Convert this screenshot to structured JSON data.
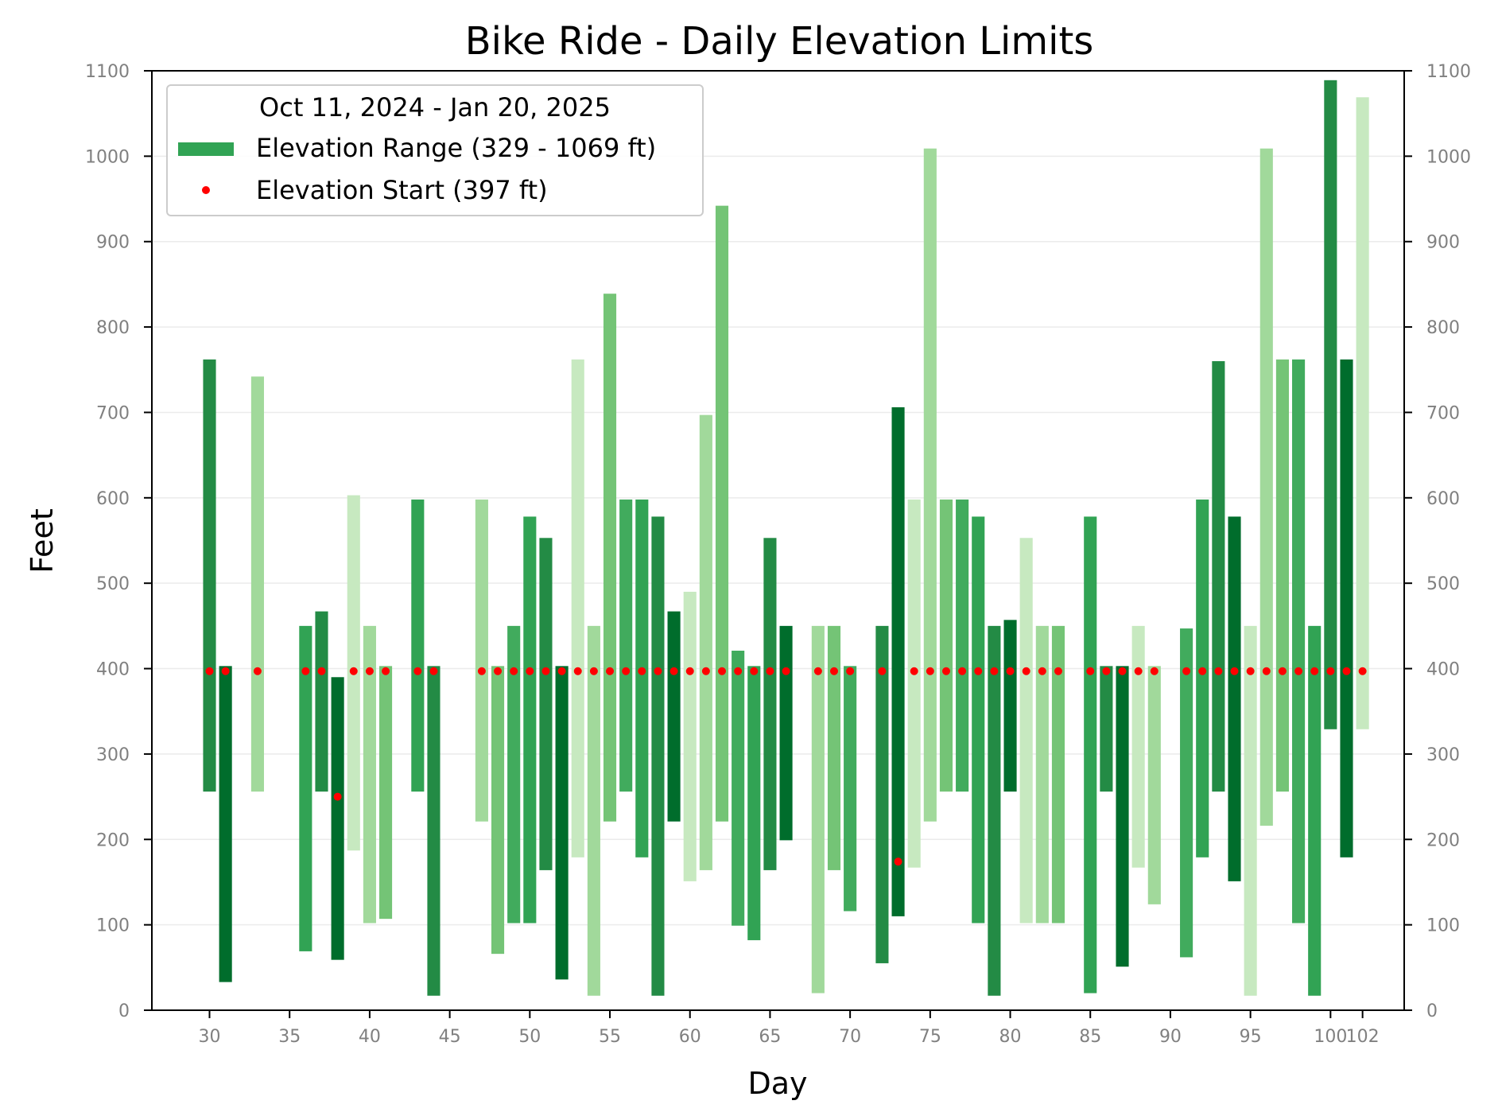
{
  "chart_data": {
    "type": "bar",
    "title": "Bike Ride - Daily Elevation Limits",
    "xlabel": "Day",
    "ylabel": "Feet",
    "ylim": [
      0,
      1100
    ],
    "xlim": [
      26.4,
      104.6
    ],
    "yticks": [
      0,
      100,
      200,
      300,
      400,
      500,
      600,
      700,
      800,
      900,
      1000,
      1100
    ],
    "xticks": [
      30,
      35,
      40,
      45,
      50,
      55,
      60,
      65,
      70,
      75,
      80,
      85,
      90,
      95,
      100,
      102
    ],
    "xtick_labels": [
      "30",
      "35",
      "40",
      "45",
      "50",
      "55",
      "60",
      "65",
      "70",
      "75",
      "80",
      "85",
      "90",
      "95",
      "100",
      "102"
    ],
    "right_axis_ticks": true,
    "grid": "horizontal",
    "legend": {
      "title": "Oct 11, 2024 - Jan 20, 2025",
      "placement": "top-left",
      "entries": [
        {
          "label": "Elevation Range (329 - 1069 ft)",
          "kind": "bar",
          "color": "#31a354"
        },
        {
          "label": "Elevation Start (397 ft)",
          "kind": "dot",
          "color": "#ff0000"
        }
      ]
    },
    "series": [
      {
        "name": "Elevation Range (329 - 1069 ft)",
        "kind": "floating-bar",
        "bars": [
          {
            "x": 30,
            "low": 256,
            "high": 762,
            "color": "#238b45"
          },
          {
            "x": 31,
            "low": 33,
            "high": 403,
            "color": "#006d2c"
          },
          {
            "x": 33,
            "low": 256,
            "high": 742,
            "color": "#a1d99b"
          },
          {
            "x": 36,
            "low": 69,
            "high": 450,
            "color": "#31a354"
          },
          {
            "x": 37,
            "low": 256,
            "high": 467,
            "color": "#238b45"
          },
          {
            "x": 38,
            "low": 59,
            "high": 390,
            "color": "#006d2c"
          },
          {
            "x": 39,
            "low": 187,
            "high": 603,
            "color": "#c7e9c0"
          },
          {
            "x": 40,
            "low": 102,
            "high": 450,
            "color": "#a1d99b"
          },
          {
            "x": 41,
            "low": 107,
            "high": 403,
            "color": "#74c476"
          },
          {
            "x": 43,
            "low": 256,
            "high": 598,
            "color": "#31a354"
          },
          {
            "x": 44,
            "low": 17,
            "high": 403,
            "color": "#238b45"
          },
          {
            "x": 47,
            "low": 221,
            "high": 598,
            "color": "#a1d99b"
          },
          {
            "x": 48,
            "low": 66,
            "high": 403,
            "color": "#74c476"
          },
          {
            "x": 49,
            "low": 102,
            "high": 450,
            "color": "#41ab5d"
          },
          {
            "x": 50,
            "low": 102,
            "high": 578,
            "color": "#31a354"
          },
          {
            "x": 51,
            "low": 164,
            "high": 553,
            "color": "#238b45"
          },
          {
            "x": 52,
            "low": 36,
            "high": 403,
            "color": "#006d2c"
          },
          {
            "x": 53,
            "low": 179,
            "high": 762,
            "color": "#c7e9c0"
          },
          {
            "x": 54,
            "low": 17,
            "high": 450,
            "color": "#a1d99b"
          },
          {
            "x": 55,
            "low": 221,
            "high": 839,
            "color": "#74c476"
          },
          {
            "x": 56,
            "low": 256,
            "high": 598,
            "color": "#41ab5d"
          },
          {
            "x": 57,
            "low": 179,
            "high": 598,
            "color": "#31a354"
          },
          {
            "x": 58,
            "low": 17,
            "high": 578,
            "color": "#238b45"
          },
          {
            "x": 59,
            "low": 221,
            "high": 467,
            "color": "#006d2c"
          },
          {
            "x": 60,
            "low": 151,
            "high": 490,
            "color": "#c7e9c0"
          },
          {
            "x": 61,
            "low": 164,
            "high": 697,
            "color": "#a1d99b"
          },
          {
            "x": 62,
            "low": 221,
            "high": 942,
            "color": "#74c476"
          },
          {
            "x": 63,
            "low": 99,
            "high": 421,
            "color": "#41ab5d"
          },
          {
            "x": 64,
            "low": 82,
            "high": 403,
            "color": "#31a354"
          },
          {
            "x": 65,
            "low": 164,
            "high": 553,
            "color": "#238b45"
          },
          {
            "x": 66,
            "low": 199,
            "high": 450,
            "color": "#006d2c"
          },
          {
            "x": 68,
            "low": 20,
            "high": 450,
            "color": "#a1d99b"
          },
          {
            "x": 69,
            "low": 164,
            "high": 450,
            "color": "#74c476"
          },
          {
            "x": 70,
            "low": 116,
            "high": 403,
            "color": "#41ab5d"
          },
          {
            "x": 72,
            "low": 55,
            "high": 450,
            "color": "#238b45"
          },
          {
            "x": 73,
            "low": 110,
            "high": 706,
            "color": "#006d2c"
          },
          {
            "x": 74,
            "low": 167,
            "high": 598,
            "color": "#c7e9c0"
          },
          {
            "x": 75,
            "low": 221,
            "high": 1009,
            "color": "#a1d99b"
          },
          {
            "x": 76,
            "low": 256,
            "high": 598,
            "color": "#74c476"
          },
          {
            "x": 77,
            "low": 256,
            "high": 598,
            "color": "#41ab5d"
          },
          {
            "x": 78,
            "low": 102,
            "high": 578,
            "color": "#31a354"
          },
          {
            "x": 79,
            "low": 17,
            "high": 450,
            "color": "#238b45"
          },
          {
            "x": 80,
            "low": 256,
            "high": 457,
            "color": "#006d2c"
          },
          {
            "x": 81,
            "low": 102,
            "high": 553,
            "color": "#c7e9c0"
          },
          {
            "x": 82,
            "low": 102,
            "high": 450,
            "color": "#a1d99b"
          },
          {
            "x": 83,
            "low": 102,
            "high": 450,
            "color": "#74c476"
          },
          {
            "x": 85,
            "low": 20,
            "high": 578,
            "color": "#31a354"
          },
          {
            "x": 86,
            "low": 256,
            "high": 403,
            "color": "#238b45"
          },
          {
            "x": 87,
            "low": 51,
            "high": 403,
            "color": "#006d2c"
          },
          {
            "x": 88,
            "low": 167,
            "high": 450,
            "color": "#c7e9c0"
          },
          {
            "x": 89,
            "low": 124,
            "high": 403,
            "color": "#a1d99b"
          },
          {
            "x": 91,
            "low": 62,
            "high": 447,
            "color": "#41ab5d"
          },
          {
            "x": 92,
            "low": 179,
            "high": 598,
            "color": "#31a354"
          },
          {
            "x": 93,
            "low": 256,
            "high": 760,
            "color": "#238b45"
          },
          {
            "x": 94,
            "low": 151,
            "high": 578,
            "color": "#006d2c"
          },
          {
            "x": 95,
            "low": 17,
            "high": 450,
            "color": "#c7e9c0"
          },
          {
            "x": 96,
            "low": 216,
            "high": 1009,
            "color": "#a1d99b"
          },
          {
            "x": 97,
            "low": 256,
            "high": 762,
            "color": "#74c476"
          },
          {
            "x": 98,
            "low": 102,
            "high": 762,
            "color": "#41ab5d"
          },
          {
            "x": 99,
            "low": 17,
            "high": 450,
            "color": "#31a354"
          },
          {
            "x": 100,
            "low": 329,
            "high": 1089,
            "color": "#238b45"
          },
          {
            "x": 101,
            "low": 179,
            "high": 762,
            "color": "#006d2c"
          },
          {
            "x": 102,
            "low": 329,
            "high": 1069,
            "color": "#c7e9c0"
          }
        ]
      },
      {
        "name": "Elevation Start (397 ft)",
        "kind": "scatter",
        "color": "#ff0000",
        "points": [
          [
            30,
            397
          ],
          [
            31,
            397
          ],
          [
            33,
            397
          ],
          [
            36,
            397
          ],
          [
            37,
            397
          ],
          [
            38,
            250
          ],
          [
            39,
            397
          ],
          [
            40,
            397
          ],
          [
            41,
            397
          ],
          [
            43,
            397
          ],
          [
            44,
            397
          ],
          [
            47,
            397
          ],
          [
            48,
            397
          ],
          [
            49,
            397
          ],
          [
            50,
            397
          ],
          [
            51,
            397
          ],
          [
            52,
            397
          ],
          [
            53,
            397
          ],
          [
            54,
            397
          ],
          [
            55,
            397
          ],
          [
            56,
            397
          ],
          [
            57,
            397
          ],
          [
            58,
            397
          ],
          [
            59,
            397
          ],
          [
            60,
            397
          ],
          [
            61,
            397
          ],
          [
            62,
            397
          ],
          [
            63,
            397
          ],
          [
            64,
            397
          ],
          [
            65,
            397
          ],
          [
            66,
            397
          ],
          [
            68,
            397
          ],
          [
            69,
            397
          ],
          [
            70,
            397
          ],
          [
            72,
            397
          ],
          [
            73,
            174
          ],
          [
            74,
            397
          ],
          [
            75,
            397
          ],
          [
            76,
            397
          ],
          [
            77,
            397
          ],
          [
            78,
            397
          ],
          [
            79,
            397
          ],
          [
            80,
            397
          ],
          [
            81,
            397
          ],
          [
            82,
            397
          ],
          [
            83,
            397
          ],
          [
            85,
            397
          ],
          [
            86,
            397
          ],
          [
            87,
            397
          ],
          [
            88,
            397
          ],
          [
            89,
            397
          ],
          [
            91,
            397
          ],
          [
            92,
            397
          ],
          [
            93,
            397
          ],
          [
            94,
            397
          ],
          [
            95,
            397
          ],
          [
            96,
            397
          ],
          [
            97,
            397
          ],
          [
            98,
            397
          ],
          [
            99,
            397
          ],
          [
            100,
            397
          ],
          [
            101,
            397
          ],
          [
            102,
            397
          ]
        ]
      }
    ]
  }
}
